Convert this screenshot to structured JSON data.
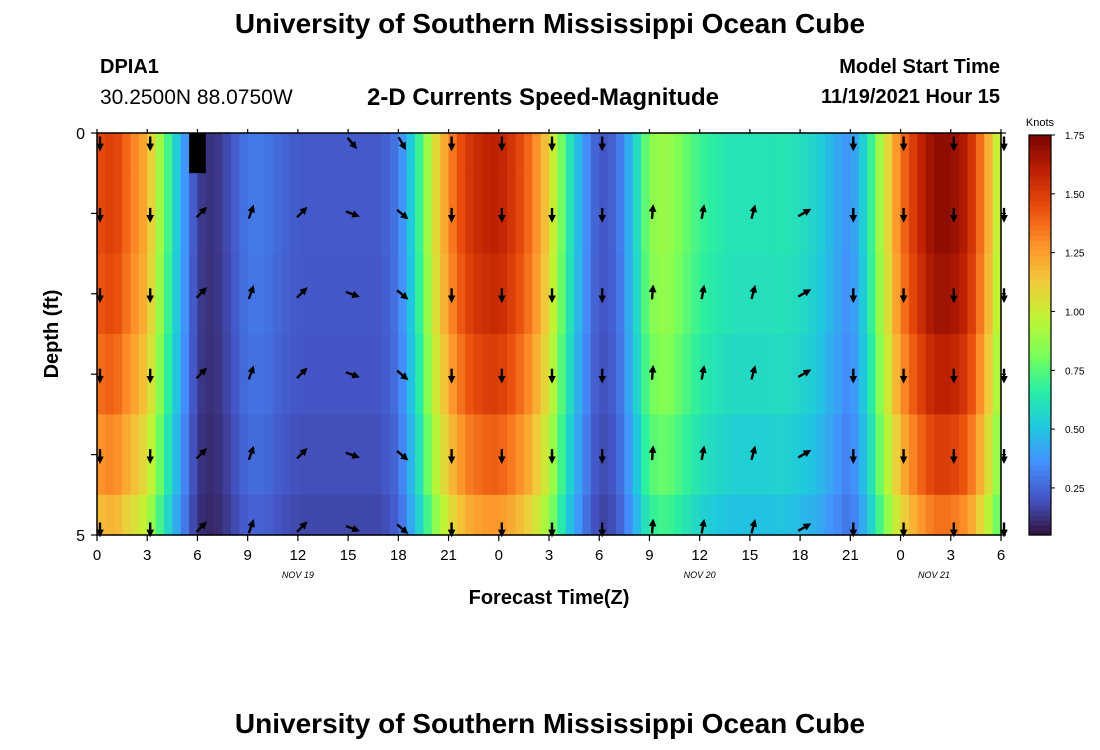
{
  "header": {
    "title": "University of Southern Mississippi Ocean Cube",
    "station_id": "DPIA1",
    "station_coords": "30.2500N  88.0750W",
    "subtitle": "2-D Currents Speed-Magnitude",
    "model_start_label": "Model Start Time",
    "model_start_value": "11/19/2021 Hour 15"
  },
  "footer": {
    "title": "University of Southern Mississippi Ocean Cube"
  },
  "chart_data": {
    "type": "heatmap",
    "title": "2-D Currents Speed-Magnitude",
    "xlabel": "Forecast Time(Z)",
    "ylabel": "Depth (ft)",
    "ylim": [
      0,
      5
    ],
    "y_tick_labels": [
      "0",
      "5"
    ],
    "x_tick_labels": [
      "0",
      "3",
      "6",
      "9",
      "12",
      "15",
      "18",
      "21",
      "0",
      "3",
      "6",
      "9",
      "12",
      "15",
      "18",
      "21",
      "0",
      "3",
      "6"
    ],
    "x_hours": [
      0,
      54
    ],
    "date_labels": [
      {
        "label": "NOV 19",
        "hour": 12
      },
      {
        "label": "NOV 20",
        "hour": 36
      },
      {
        "label": "NOV 21",
        "hour": 50
      }
    ],
    "colorbar": {
      "title": "Knots",
      "range": [
        0.05,
        1.75
      ],
      "ticks": [
        "0.25",
        "0.50",
        "0.75",
        "1.00",
        "1.25",
        "1.50",
        "1.75"
      ],
      "colors": [
        "#30123b",
        "#4454c4",
        "#4490fe",
        "#1fc8de",
        "#29efa2",
        "#7dff56",
        "#c1f334",
        "#f1ca3a",
        "#fe922a",
        "#ea4f0d",
        "#be2102",
        "#7a0403"
      ]
    },
    "depth_layers": [
      "0.0-0.5",
      "0.5-1.5",
      "1.5-2.5",
      "2.5-3.5",
      "3.5-4.5",
      "4.5-5.0"
    ],
    "profile_hours": [
      0,
      1,
      2,
      3,
      4,
      5,
      6,
      7,
      8,
      9,
      10,
      11,
      12,
      13,
      14,
      15,
      16,
      17,
      18,
      19,
      20,
      21,
      22,
      23,
      24,
      25,
      26,
      27,
      28,
      29,
      30,
      31,
      32,
      33,
      34,
      35,
      36,
      37,
      38,
      39,
      40,
      41,
      42,
      43,
      44,
      45,
      46,
      47,
      48,
      49,
      50,
      51,
      52,
      53,
      54
    ],
    "profile_speed": [
      1.45,
      1.5,
      1.35,
      1.2,
      0.8,
      0.45,
      0.15,
      0.12,
      0.2,
      0.3,
      0.3,
      0.25,
      0.22,
      0.22,
      0.22,
      0.22,
      0.22,
      0.22,
      0.3,
      0.6,
      1.0,
      1.3,
      1.5,
      1.58,
      1.6,
      1.5,
      1.35,
      1.1,
      0.7,
      0.4,
      0.2,
      0.25,
      0.5,
      0.85,
      0.9,
      0.8,
      0.7,
      0.65,
      0.62,
      0.62,
      0.62,
      0.63,
      0.6,
      0.55,
      0.45,
      0.35,
      0.6,
      1.0,
      1.35,
      1.55,
      1.7,
      1.7,
      1.6,
      1.3,
      0.9
    ],
    "layer_factor": [
      1.0,
      1.0,
      0.98,
      0.94,
      0.88,
      0.8
    ],
    "surface_anomaly": [
      {
        "hour": 6,
        "speed": 0.02
      }
    ],
    "arrows": {
      "hours": [
        0,
        3,
        6,
        9,
        12,
        15,
        18,
        21,
        24,
        27,
        30,
        33,
        36,
        39,
        42,
        45,
        48,
        51,
        54
      ],
      "depth_rows": [
        0,
        1,
        2,
        3,
        4,
        5
      ],
      "direction_deg_by_hour": [
        180,
        180,
        45,
        20,
        45,
        110,
        130,
        180,
        180,
        180,
        180,
        5,
        10,
        15,
        60,
        180,
        180,
        180,
        180
      ],
      "surface_direction_deg_by_hour": [
        180,
        180,
        null,
        null,
        null,
        140,
        150,
        180,
        180,
        180,
        180,
        null,
        null,
        null,
        null,
        180,
        180,
        180,
        180
      ]
    }
  }
}
